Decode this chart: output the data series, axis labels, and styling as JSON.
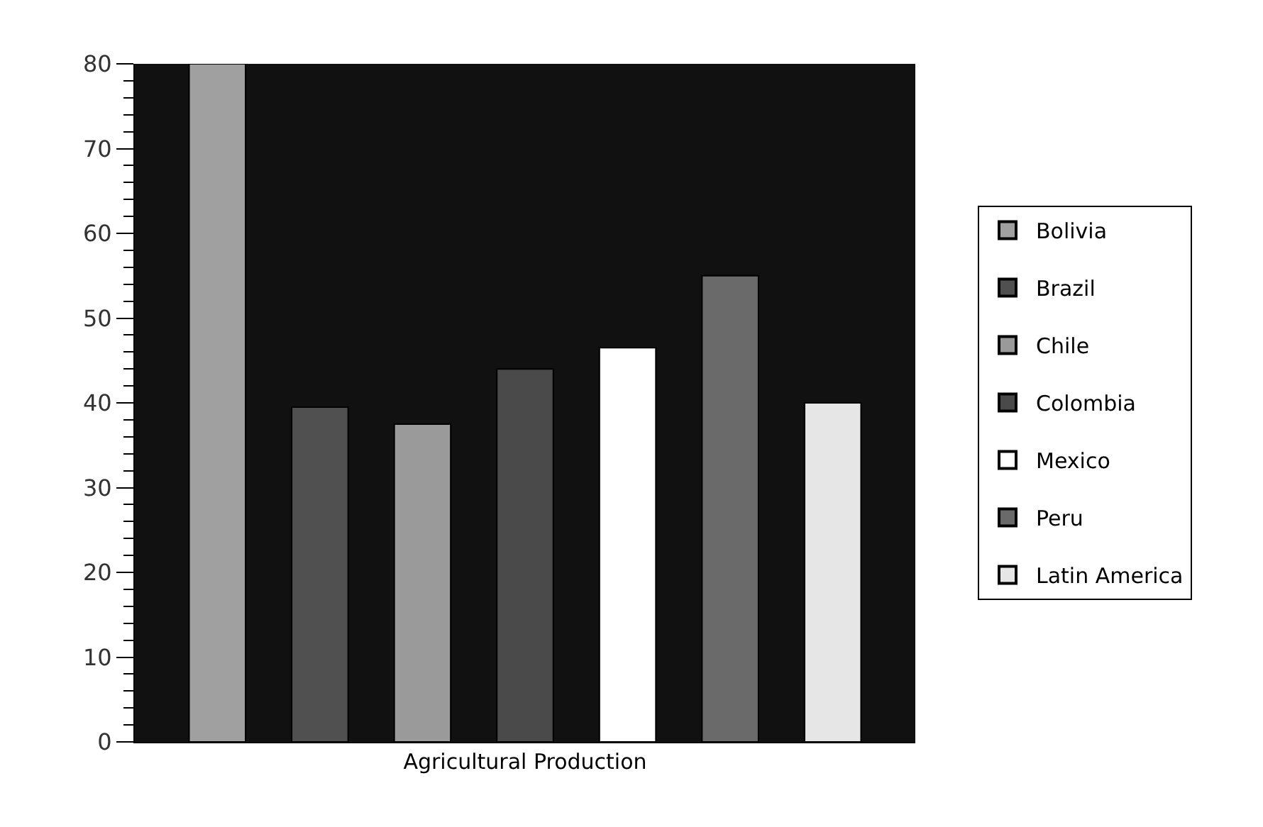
{
  "chart_data": {
    "type": "bar",
    "categories": [
      "Agricultural Production"
    ],
    "series": [
      {
        "name": "Bolivia",
        "color": "#a0a0a0",
        "values": [
          80
        ]
      },
      {
        "name": "Brazil",
        "color": "#505050",
        "values": [
          39.5
        ]
      },
      {
        "name": "Chile",
        "color": "#9a9a9a",
        "values": [
          37.5
        ]
      },
      {
        "name": "Colombia",
        "color": "#4a4a4a",
        "values": [
          44
        ]
      },
      {
        "name": "Mexico",
        "color": "#ffffff",
        "values": [
          46.5
        ]
      },
      {
        "name": "Peru",
        "color": "#6a6a6a",
        "values": [
          55
        ]
      },
      {
        "name": "Latin America",
        "color": "#e6e6e6",
        "values": [
          40
        ]
      }
    ],
    "ylim": [
      0,
      80
    ],
    "yticks": [
      0,
      10,
      20,
      30,
      40,
      50,
      60,
      70,
      80
    ],
    "grid": false,
    "legend": "right"
  }
}
